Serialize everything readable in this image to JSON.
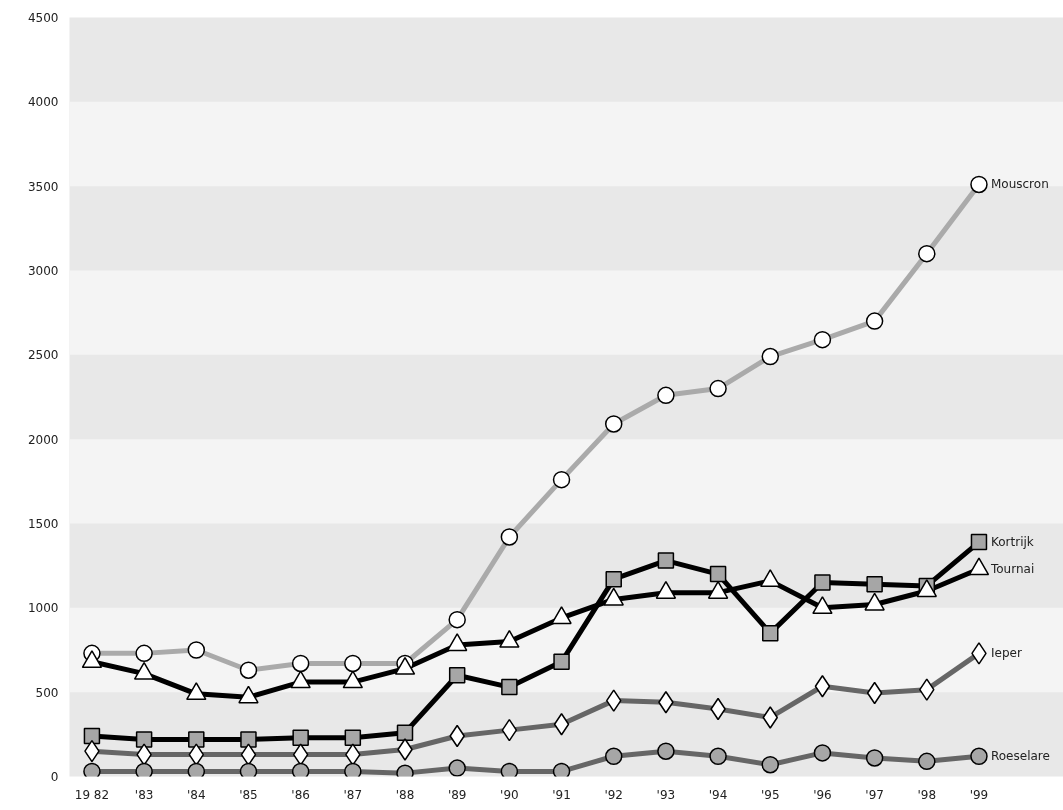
{
  "chart_data": {
    "type": "line",
    "categories": [
      "19 82",
      "'83",
      "'84",
      "'85",
      "'86",
      "'87",
      "'88",
      "'89",
      "'90",
      "'91",
      "'92",
      "'93",
      "'94",
      "'95",
      "'96",
      "'97",
      "'98",
      "'99"
    ],
    "series": [
      {
        "name": "Mouscron",
        "color": "#aaaaaa",
        "marker": "circle",
        "values": [
          730,
          730,
          750,
          630,
          670,
          670,
          670,
          930,
          1420,
          1760,
          2090,
          2260,
          2300,
          2490,
          2590,
          2700,
          3100,
          3510
        ]
      },
      {
        "name": "Kortrijk",
        "color": "#000000",
        "marker": "square",
        "values": [
          240,
          220,
          220,
          220,
          230,
          230,
          260,
          600,
          530,
          680,
          1170,
          1280,
          1200,
          850,
          1150,
          1140,
          1130,
          1390
        ]
      },
      {
        "name": "Tournai",
        "color": "#000000",
        "marker": "triangle",
        "values": [
          680,
          610,
          490,
          470,
          560,
          560,
          640,
          780,
          800,
          940,
          1050,
          1090,
          1090,
          1160,
          1000,
          1020,
          1100,
          1230
        ]
      },
      {
        "name": "Ieper",
        "color": "#666666",
        "marker": "diamond",
        "values": [
          150,
          130,
          130,
          130,
          130,
          130,
          160,
          240,
          275,
          310,
          450,
          440,
          400,
          350,
          535,
          495,
          515,
          730
        ]
      },
      {
        "name": "Roeselare",
        "color": "#666666",
        "marker": "circle",
        "values": [
          30,
          30,
          30,
          30,
          30,
          30,
          20,
          50,
          30,
          30,
          120,
          150,
          120,
          70,
          140,
          110,
          90,
          120
        ]
      }
    ],
    "bands": [
      {
        "axis": "y",
        "from": 500,
        "to": 1000,
        "color": "#f4f4f4"
      },
      {
        "axis": "y",
        "from": 1500,
        "to": 2000,
        "color": "#f4f4f4"
      },
      {
        "axis": "y",
        "from": 2500,
        "to": 3000,
        "color": "#f4f4f4"
      },
      {
        "axis": "y",
        "from": 3500,
        "to": 4000,
        "color": "#f4f4f4"
      }
    ],
    "ylim": [
      0,
      4500
    ],
    "yticks": [
      0,
      500,
      1000,
      1500,
      2000,
      2500,
      3000,
      3500,
      4000,
      4500
    ]
  }
}
